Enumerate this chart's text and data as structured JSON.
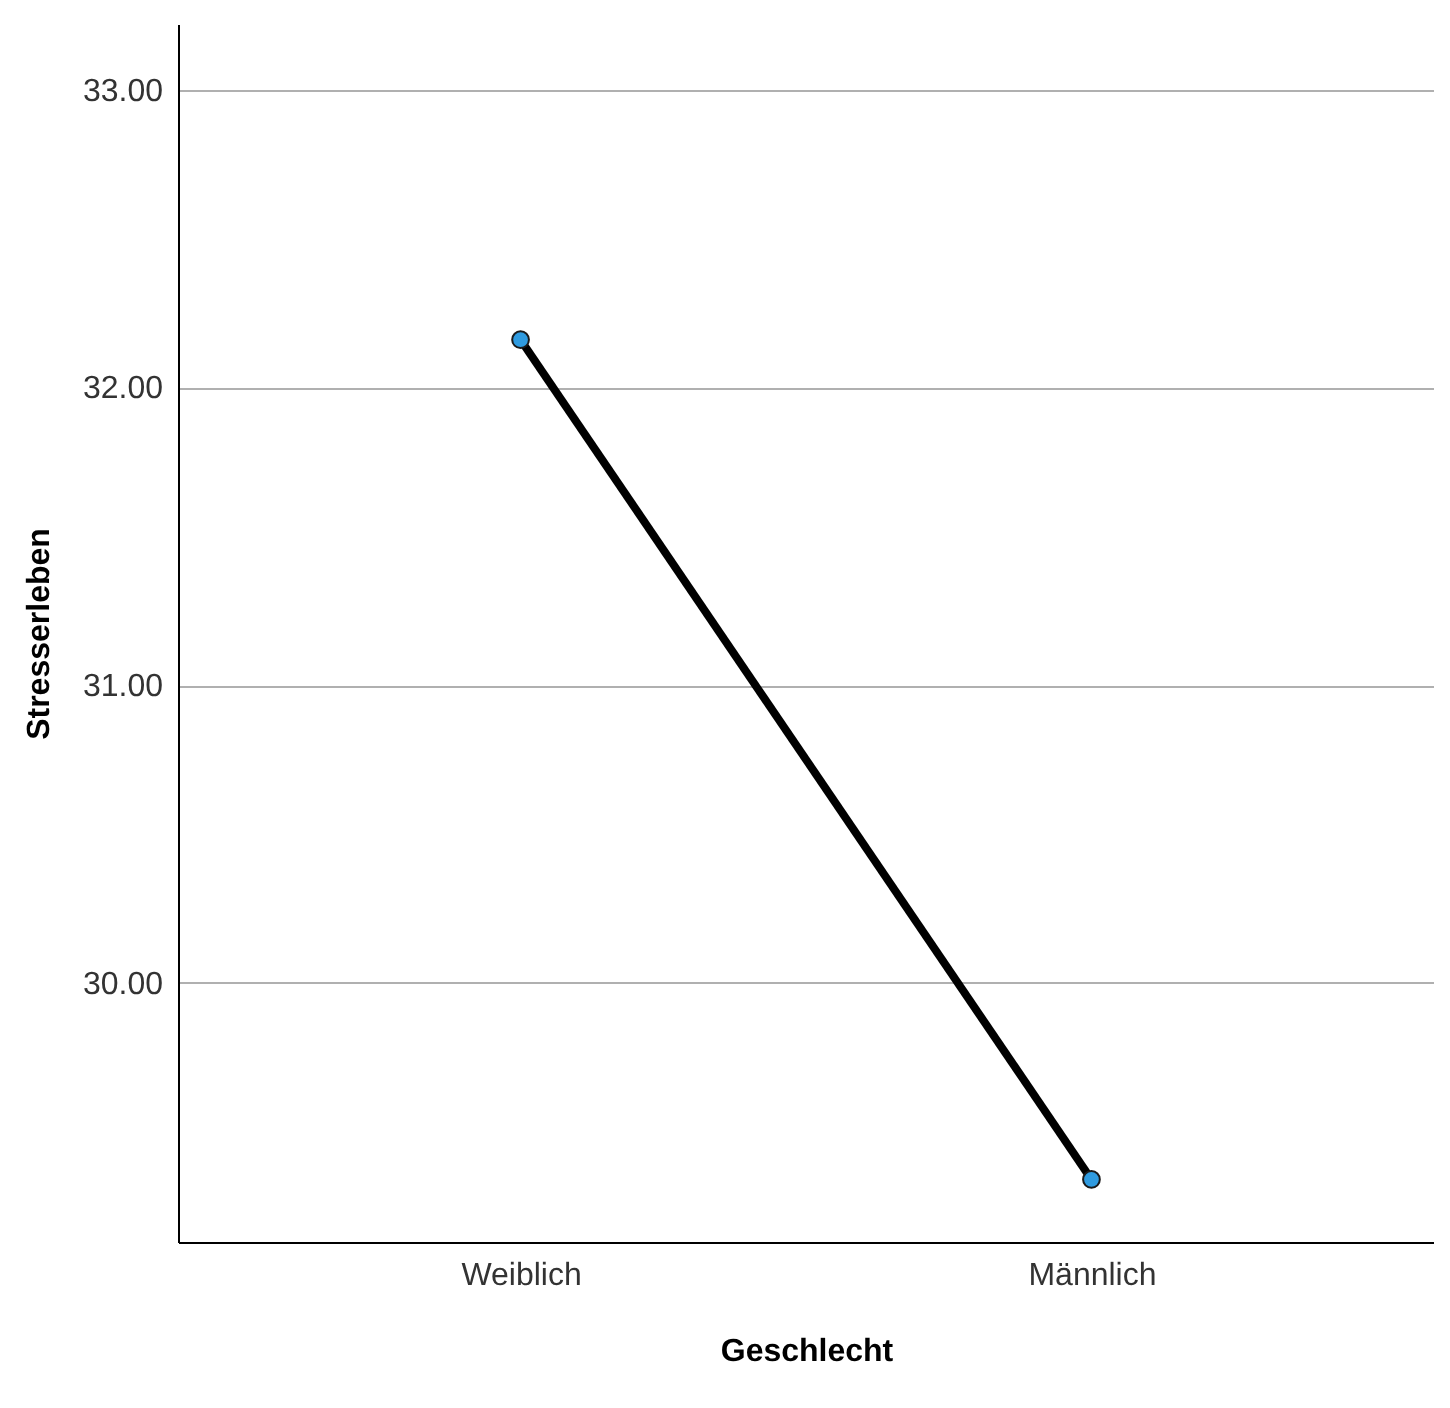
{
  "chart_data": {
    "type": "line",
    "xlabel": "Geschlecht",
    "ylabel": "Stresserleben",
    "categories": [
      "Weiblich",
      "Männlich"
    ],
    "series": [
      {
        "color": "#000000",
        "colors": [
          "#2f9be0",
          "#2f9be0"
        ],
        "values": [
          32.16,
          29.34
        ]
      }
    ],
    "ylim": [
      29.13,
      33.22
    ],
    "yticks": [
      {
        "value": 30,
        "label": "30.00"
      },
      {
        "value": 31,
        "label": "31.00"
      },
      {
        "value": 32,
        "label": "32.00"
      },
      {
        "value": 33,
        "label": "33.00"
      }
    ],
    "grid": "y",
    "marker": "circle",
    "line_style": "solid"
  }
}
